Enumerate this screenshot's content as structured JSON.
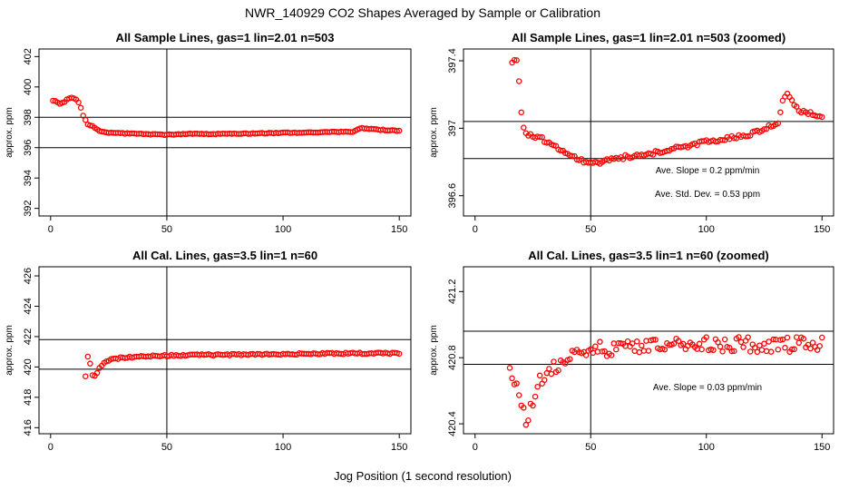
{
  "figure": {
    "title": "NWR_140929  CO2 Shapes Averaged by Sample or Calibration",
    "xlabel": "Jog Position (1 second resolution)"
  },
  "colors": {
    "points": "#ff0000",
    "axes": "#000000",
    "background": "#ffffff"
  },
  "chart_data": [
    {
      "type": "scatter",
      "title": "All Sample Lines, gas=1 lin=2.01 n=503",
      "ylabel": "approx. ppm",
      "xlim": [
        -5,
        155
      ],
      "ylim": [
        391.5,
        402.5
      ],
      "xticks": [
        0,
        50,
        100,
        150
      ],
      "yticks": [
        392,
        394,
        396,
        398,
        400,
        402
      ],
      "vlines": [
        50
      ],
      "hlines": [
        396,
        398
      ],
      "annotations": [],
      "series": [
        {
          "name": "sample",
          "anchors": [
            [
              1,
              399.1
            ],
            [
              3,
              399.0
            ],
            [
              4,
              398.9
            ],
            [
              6,
              399.0
            ],
            [
              7,
              399.2
            ],
            [
              9,
              399.3
            ],
            [
              11,
              399.2
            ],
            [
              12,
              399.0
            ],
            [
              13,
              398.6
            ],
            [
              14,
              398.1
            ],
            [
              15,
              397.8
            ],
            [
              16,
              397.5
            ],
            [
              18,
              397.4
            ],
            [
              20,
              397.2
            ],
            [
              22,
              397.05
            ],
            [
              25,
              397.0
            ],
            [
              30,
              396.95
            ],
            [
              40,
              396.9
            ],
            [
              50,
              396.85
            ],
            [
              60,
              396.9
            ],
            [
              75,
              396.9
            ],
            [
              90,
              396.95
            ],
            [
              110,
              397.0
            ],
            [
              130,
              397.05
            ],
            [
              134,
              397.3
            ],
            [
              140,
              397.2
            ],
            [
              150,
              397.1
            ]
          ]
        }
      ]
    },
    {
      "type": "scatter",
      "title": "All Sample Lines, gas=1 lin=2.01 n=503 (zoomed)",
      "ylabel": "approx. ppm",
      "xlim": [
        -5,
        155
      ],
      "ylim": [
        396.48,
        397.47
      ],
      "xticks": [
        0,
        50,
        100,
        150
      ],
      "yticks": [
        396.6,
        397.0,
        397.4
      ],
      "vlines": [
        50
      ],
      "hlines": [
        396.82,
        397.04
      ],
      "annotations": [
        "Ave. Slope = 0.2  ppm/min",
        "Ave. Std. Dev. =  0.53  ppm"
      ],
      "series": [
        {
          "name": "sample",
          "anchors": [
            [
              16,
              397.39
            ],
            [
              17,
              397.4
            ],
            [
              18,
              397.4
            ],
            [
              19,
              397.27
            ],
            [
              20,
              397.1
            ],
            [
              21,
              397.01
            ],
            [
              22,
              396.96
            ],
            [
              25,
              396.96
            ],
            [
              30,
              396.93
            ],
            [
              35,
              396.89
            ],
            [
              40,
              396.85
            ],
            [
              45,
              396.81
            ],
            [
              50,
              396.8
            ],
            [
              55,
              396.8
            ],
            [
              60,
              396.82
            ],
            [
              70,
              396.84
            ],
            [
              80,
              396.86
            ],
            [
              90,
              396.89
            ],
            [
              100,
              396.92
            ],
            [
              110,
              396.94
            ],
            [
              120,
              396.97
            ],
            [
              128,
              397.02
            ],
            [
              131,
              397.03
            ],
            [
              133,
              397.17
            ],
            [
              135,
              397.2
            ],
            [
              137,
              397.16
            ],
            [
              140,
              397.1
            ],
            [
              145,
              397.09
            ],
            [
              150,
              397.06
            ]
          ]
        }
      ]
    },
    {
      "type": "scatter",
      "title": "All Cal. Lines, gas=3.5 lin=1 n=60",
      "ylabel": "approx. ppm",
      "xlim": [
        -5,
        155
      ],
      "ylim": [
        415.6,
        426.6
      ],
      "xticks": [
        0,
        50,
        100,
        150
      ],
      "yticks": [
        416,
        418,
        420,
        422,
        424,
        426
      ],
      "vlines": [
        50
      ],
      "hlines": [
        419.85,
        421.8
      ],
      "annotations": [],
      "series": [
        {
          "name": "cal",
          "anchors": [
            [
              15,
              419.4
            ],
            [
              16,
              420.7
            ],
            [
              17,
              420.2
            ],
            [
              18,
              419.5
            ],
            [
              19,
              419.4
            ],
            [
              20,
              419.6
            ],
            [
              21,
              419.9
            ],
            [
              22,
              420.1
            ],
            [
              24,
              420.4
            ],
            [
              26,
              420.5
            ],
            [
              30,
              420.6
            ],
            [
              40,
              420.7
            ],
            [
              50,
              420.75
            ],
            [
              70,
              420.8
            ],
            [
              100,
              420.85
            ],
            [
              130,
              420.9
            ],
            [
              150,
              420.9
            ]
          ]
        }
      ]
    },
    {
      "type": "scatter",
      "title": "All Cal. Lines, gas=3.5 lin=1 n=60 (zoomed)",
      "ylabel": "approx. ppm",
      "xlim": [
        -5,
        155
      ],
      "ylim": [
        420.34,
        421.35
      ],
      "xticks": [
        0,
        50,
        100,
        150
      ],
      "yticks": [
        420.4,
        420.8,
        421.2
      ],
      "vlines": [
        50
      ],
      "hlines": [
        420.76,
        420.96
      ],
      "annotations": [
        "Ave. Slope =  0.03  ppm/min"
      ],
      "series": [
        {
          "name": "cal",
          "anchors": [
            [
              15,
              420.75
            ],
            [
              20,
              420.55
            ],
            [
              22,
              420.42
            ],
            [
              24,
              420.5
            ],
            [
              26,
              420.6
            ],
            [
              30,
              420.7
            ],
            [
              40,
              420.8
            ],
            [
              50,
              420.85
            ],
            [
              70,
              420.86
            ],
            [
              100,
              420.88
            ],
            [
              130,
              420.88
            ],
            [
              150,
              420.88
            ]
          ]
        }
      ]
    }
  ]
}
